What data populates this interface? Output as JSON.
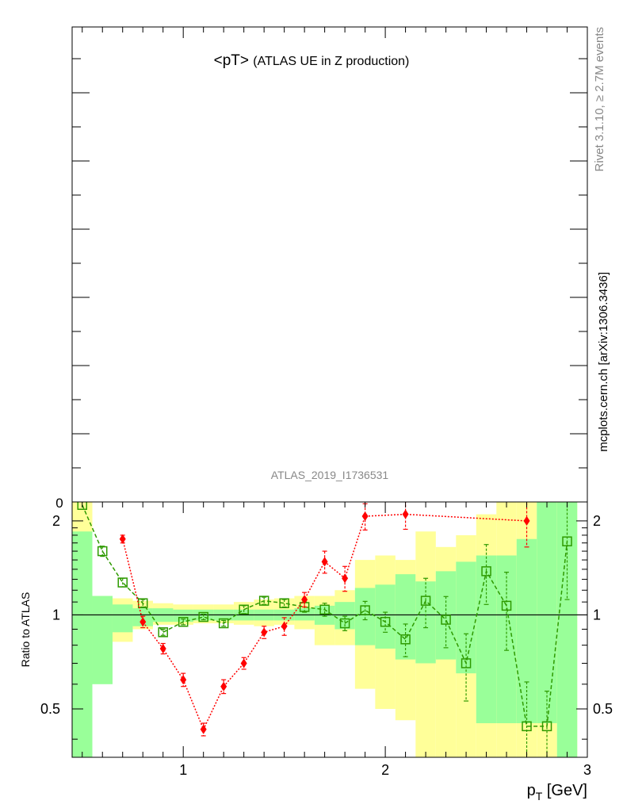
{
  "title": {
    "main": "<pT>",
    "sub": "(ATLAS UE in Z production)"
  },
  "side_labels": {
    "rivet": "Rivet 3.1.10, ≥ 2.7M events",
    "site": "mcplots.cern.ch [arXiv:1306.3436]"
  },
  "analysis_label": "ATLAS_2019_I1736531",
  "upper_tick_label": "0",
  "colors": {
    "band_inner": "#99ff99",
    "band_outer": "#ffff99",
    "mc_green": "#2e9a00",
    "mc_green_light": "#66aa00",
    "mc_red": "#ff0000"
  },
  "chart_data": {
    "type": "line",
    "xlabel": "p_T [GeV]",
    "ylabel": "Ratio to ATLAS",
    "xlim": [
      0.45,
      3.0
    ],
    "ylim": [
      0.35,
      2.3
    ],
    "yscale": "log",
    "x_ticks": [
      "1",
      "2",
      "3"
    ],
    "y_ticks": [
      "0.5",
      "1",
      "2"
    ],
    "reference_line": 1,
    "bands": {
      "edges": [
        0.45,
        0.55,
        0.65,
        0.75,
        0.85,
        0.95,
        1.05,
        1.15,
        1.25,
        1.35,
        1.45,
        1.55,
        1.65,
        1.75,
        1.85,
        1.95,
        2.05,
        2.15,
        2.25,
        2.35,
        2.45,
        2.55,
        2.65,
        2.75,
        2.85,
        2.95
      ],
      "inner_lo": [
        0.3,
        0.6,
        0.88,
        0.92,
        0.95,
        0.95,
        0.96,
        0.96,
        0.96,
        0.96,
        0.96,
        0.96,
        0.93,
        0.9,
        0.8,
        0.78,
        0.72,
        0.7,
        0.72,
        0.65,
        0.45,
        0.45,
        0.45,
        0.45,
        0.3
      ],
      "inner_hi": [
        1.85,
        1.15,
        1.08,
        1.05,
        1.05,
        1.04,
        1.04,
        1.04,
        1.04,
        1.04,
        1.04,
        1.05,
        1.07,
        1.1,
        1.22,
        1.25,
        1.35,
        1.28,
        1.38,
        1.48,
        1.55,
        1.55,
        1.75,
        2.4,
        2.4
      ],
      "outer_lo": [
        0.3,
        0.65,
        0.82,
        0.9,
        0.93,
        0.93,
        0.94,
        0.94,
        0.93,
        0.92,
        0.93,
        0.9,
        0.8,
        0.8,
        0.58,
        0.5,
        0.46,
        0.3,
        0.3,
        0.3,
        0.3,
        0.3,
        0.3,
        0.3,
        0.3
      ],
      "outer_hi": [
        2.4,
        1.15,
        1.13,
        1.11,
        1.09,
        1.08,
        1.08,
        1.08,
        1.1,
        1.12,
        1.13,
        1.15,
        1.15,
        1.2,
        1.5,
        1.55,
        1.5,
        1.85,
        1.65,
        1.8,
        2.1,
        2.4,
        2.4,
        2.4,
        2.4
      ]
    },
    "series": [
      {
        "name": "",
        "color": "#2e9a00",
        "marker": "open-square",
        "x": [
          0.5,
          0.6,
          0.7,
          0.8,
          0.9,
          1.0,
          1.1,
          1.2,
          1.3,
          1.4,
          1.5,
          1.6,
          1.7,
          1.8,
          1.9,
          2.0,
          2.1,
          2.2,
          2.3,
          2.4,
          2.5,
          2.6,
          2.7,
          2.8,
          2.9
        ],
        "y": [
          2.25,
          1.6,
          1.27,
          1.09,
          0.88,
          0.95,
          0.985,
          0.94,
          1.04,
          1.11,
          1.09,
          1.06,
          1.04,
          0.94,
          1.035,
          0.95,
          0.835,
          1.11,
          0.965,
          0.7,
          1.38,
          1.07,
          0.44,
          0.44,
          1.72
        ],
        "yerr": [
          0.07,
          0.06,
          0.04,
          0.03,
          0.02,
          0.02,
          0.02,
          0.02,
          0.03,
          0.03,
          0.03,
          0.04,
          0.05,
          0.05,
          0.07,
          0.07,
          0.1,
          0.2,
          0.18,
          0.17,
          0.3,
          0.3,
          0.17,
          0.13,
          0.6
        ]
      },
      {
        "name": "",
        "color": "#ff0000",
        "marker": "filled-diamond",
        "x": [
          0.7,
          0.8,
          0.9,
          1.0,
          1.1,
          1.2,
          1.3,
          1.4,
          1.5,
          1.6,
          1.7,
          1.8,
          1.9,
          2.1,
          2.7
        ],
        "y": [
          1.75,
          0.95,
          0.78,
          0.62,
          0.43,
          0.59,
          0.7,
          0.88,
          0.92,
          1.12,
          1.48,
          1.31,
          2.07,
          2.1,
          2.0
        ],
        "yerr": [
          0.05,
          0.04,
          0.03,
          0.03,
          0.02,
          0.03,
          0.03,
          0.04,
          0.06,
          0.06,
          0.12,
          0.12,
          0.2,
          0.22,
          0.35
        ]
      }
    ]
  }
}
